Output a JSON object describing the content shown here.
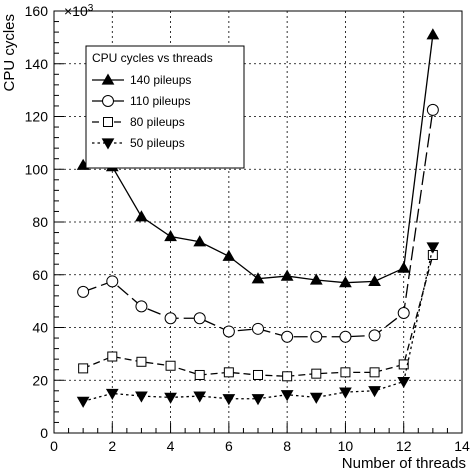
{
  "chart_data": {
    "type": "line",
    "title": "",
    "xlabel": "Number of threads",
    "ylabel": "CPU cycles",
    "y_multiplier_label": "×10",
    "y_multiplier_exponent": "3",
    "xlim": [
      0,
      14
    ],
    "ylim": [
      0,
      160
    ],
    "x_ticks": [
      0,
      2,
      4,
      6,
      8,
      10,
      12,
      14
    ],
    "y_ticks": [
      0,
      20,
      40,
      60,
      80,
      100,
      120,
      140,
      160
    ],
    "grid": true,
    "legend": {
      "title": "CPU cycles vs threads",
      "placement": "top-left"
    },
    "x": [
      1,
      2,
      3,
      4,
      5,
      6,
      7,
      8,
      9,
      10,
      11,
      12,
      13
    ],
    "series": [
      {
        "name": "140 pileups",
        "marker": "triangle-up-filled",
        "dash": "solid",
        "values": [
          101.5,
          101,
          82,
          74.5,
          72.5,
          67,
          58.5,
          59.5,
          58,
          57,
          57.5,
          62.5,
          151
        ]
      },
      {
        "name": "110 pileups",
        "marker": "circle-open",
        "dash": "long-dash",
        "values": [
          53.5,
          57.5,
          48,
          43.5,
          43.5,
          38.5,
          39.5,
          36.5,
          36.5,
          36.5,
          37,
          45.5,
          122.5
        ]
      },
      {
        "name": "80 pileups",
        "marker": "square-open",
        "dash": "dash",
        "values": [
          24.5,
          29,
          27,
          25.5,
          22,
          23,
          22,
          21.5,
          22.5,
          23,
          23,
          26,
          67.5
        ]
      },
      {
        "name": "50 pileups",
        "marker": "triangle-down-filled",
        "dash": "dot",
        "values": [
          12,
          15,
          14,
          13.5,
          14,
          13,
          13,
          14.5,
          13.5,
          15.5,
          16,
          19.5,
          70.5
        ]
      }
    ]
  }
}
